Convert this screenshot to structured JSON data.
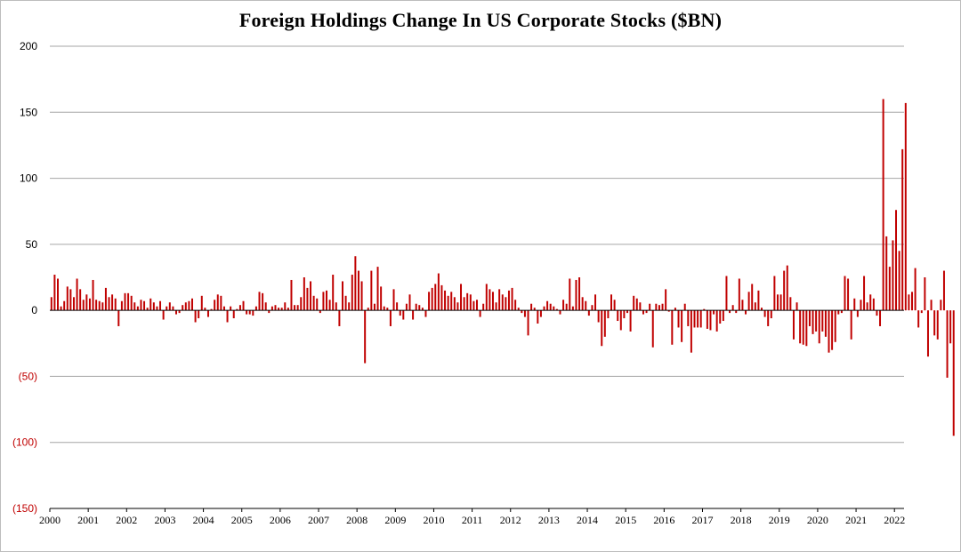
{
  "chart_data": {
    "type": "bar",
    "title": "Foreign Holdings Change In US Corporate Stocks ($BN)",
    "xlabel": "",
    "ylabel": "",
    "ylim": [
      -150,
      200
    ],
    "grid": true,
    "legend": "none",
    "colors": {
      "bar": "#c00000",
      "grid": "#a6a6a6",
      "axis": "#000000",
      "negative_label": "#c00000",
      "positive_label": "#000000"
    },
    "y_ticks": [
      {
        "value": 200,
        "label": "200"
      },
      {
        "value": 150,
        "label": "150"
      },
      {
        "value": 100,
        "label": "100"
      },
      {
        "value": 50,
        "label": "50"
      },
      {
        "value": 0,
        "label": "0"
      },
      {
        "value": -50,
        "label": "(50)"
      },
      {
        "value": -100,
        "label": "(100)"
      },
      {
        "value": -150,
        "label": "(150)"
      }
    ],
    "x_start_year": 2000,
    "x_ticks": [
      "2000",
      "2001",
      "2002",
      "2003",
      "2004",
      "2005",
      "2006",
      "2007",
      "2008",
      "2009",
      "2010",
      "2011",
      "2012",
      "2013",
      "2014",
      "2015",
      "2016",
      "2017",
      "2018",
      "2019",
      "2020",
      "2021",
      "2022"
    ],
    "values": [
      10,
      27,
      24,
      3,
      7,
      18,
      16,
      10,
      24,
      16,
      8,
      12,
      9,
      23,
      8,
      7,
      6,
      17,
      10,
      12,
      9,
      -12,
      7,
      13,
      13,
      11,
      6,
      3,
      8,
      7,
      2,
      9,
      6,
      3,
      7,
      -7,
      3,
      6,
      3,
      -3,
      -2,
      4,
      6,
      7,
      9,
      -9,
      -6,
      11,
      2,
      -5,
      1,
      8,
      12,
      11,
      3,
      -9,
      3,
      -6,
      1,
      4,
      7,
      -3,
      -3,
      -4,
      3,
      14,
      13,
      6,
      -2,
      3,
      4,
      2,
      2,
      6,
      2,
      23,
      4,
      4,
      10,
      25,
      17,
      22,
      11,
      9,
      -2,
      14,
      15,
      8,
      27,
      6,
      -12,
      22,
      11,
      6,
      27,
      41,
      30,
      22,
      -40,
      2,
      30,
      5,
      33,
      18,
      3,
      2,
      -12,
      16,
      6,
      -4,
      -7,
      5,
      12,
      -7,
      5,
      4,
      2,
      -5,
      14,
      17,
      20,
      28,
      19,
      15,
      11,
      14,
      10,
      6,
      20,
      10,
      13,
      12,
      7,
      8,
      -5,
      5,
      20,
      16,
      14,
      6,
      16,
      12,
      10,
      15,
      17,
      8,
      2,
      -2,
      -5,
      -19,
      5,
      2,
      -10,
      -5,
      3,
      7,
      5,
      3,
      1,
      -3,
      8,
      5,
      24,
      3,
      23,
      25,
      10,
      7,
      -4,
      4,
      12,
      -9,
      -27,
      -20,
      -6,
      12,
      8,
      -8,
      -15,
      -6,
      -2,
      -16,
      11,
      9,
      6,
      -3,
      -2,
      5,
      -28,
      5,
      4,
      5,
      16,
      -1,
      -26,
      2,
      -13,
      -24,
      5,
      -12,
      -32,
      -13,
      -13,
      -13,
      1,
      -14,
      -15,
      -3,
      -16,
      -10,
      -8,
      26,
      -2,
      4,
      -2,
      24,
      8,
      -3,
      14,
      20,
      6,
      15,
      2,
      -5,
      -12,
      -6,
      26,
      12,
      12,
      30,
      34,
      10,
      -22,
      6,
      -25,
      -26,
      -27,
      -12,
      -18,
      -16,
      -25,
      -16,
      -20,
      -32,
      -30,
      -24,
      -3,
      -2,
      26,
      24,
      -22,
      9,
      -5,
      8,
      26,
      6,
      12,
      9,
      -4,
      -12,
      160,
      56,
      33,
      53,
      76,
      45,
      122,
      157,
      12,
      14,
      32,
      -13,
      -2,
      25,
      -35,
      8,
      -19,
      -22,
      8,
      30,
      -51,
      -25,
      -95
    ]
  }
}
